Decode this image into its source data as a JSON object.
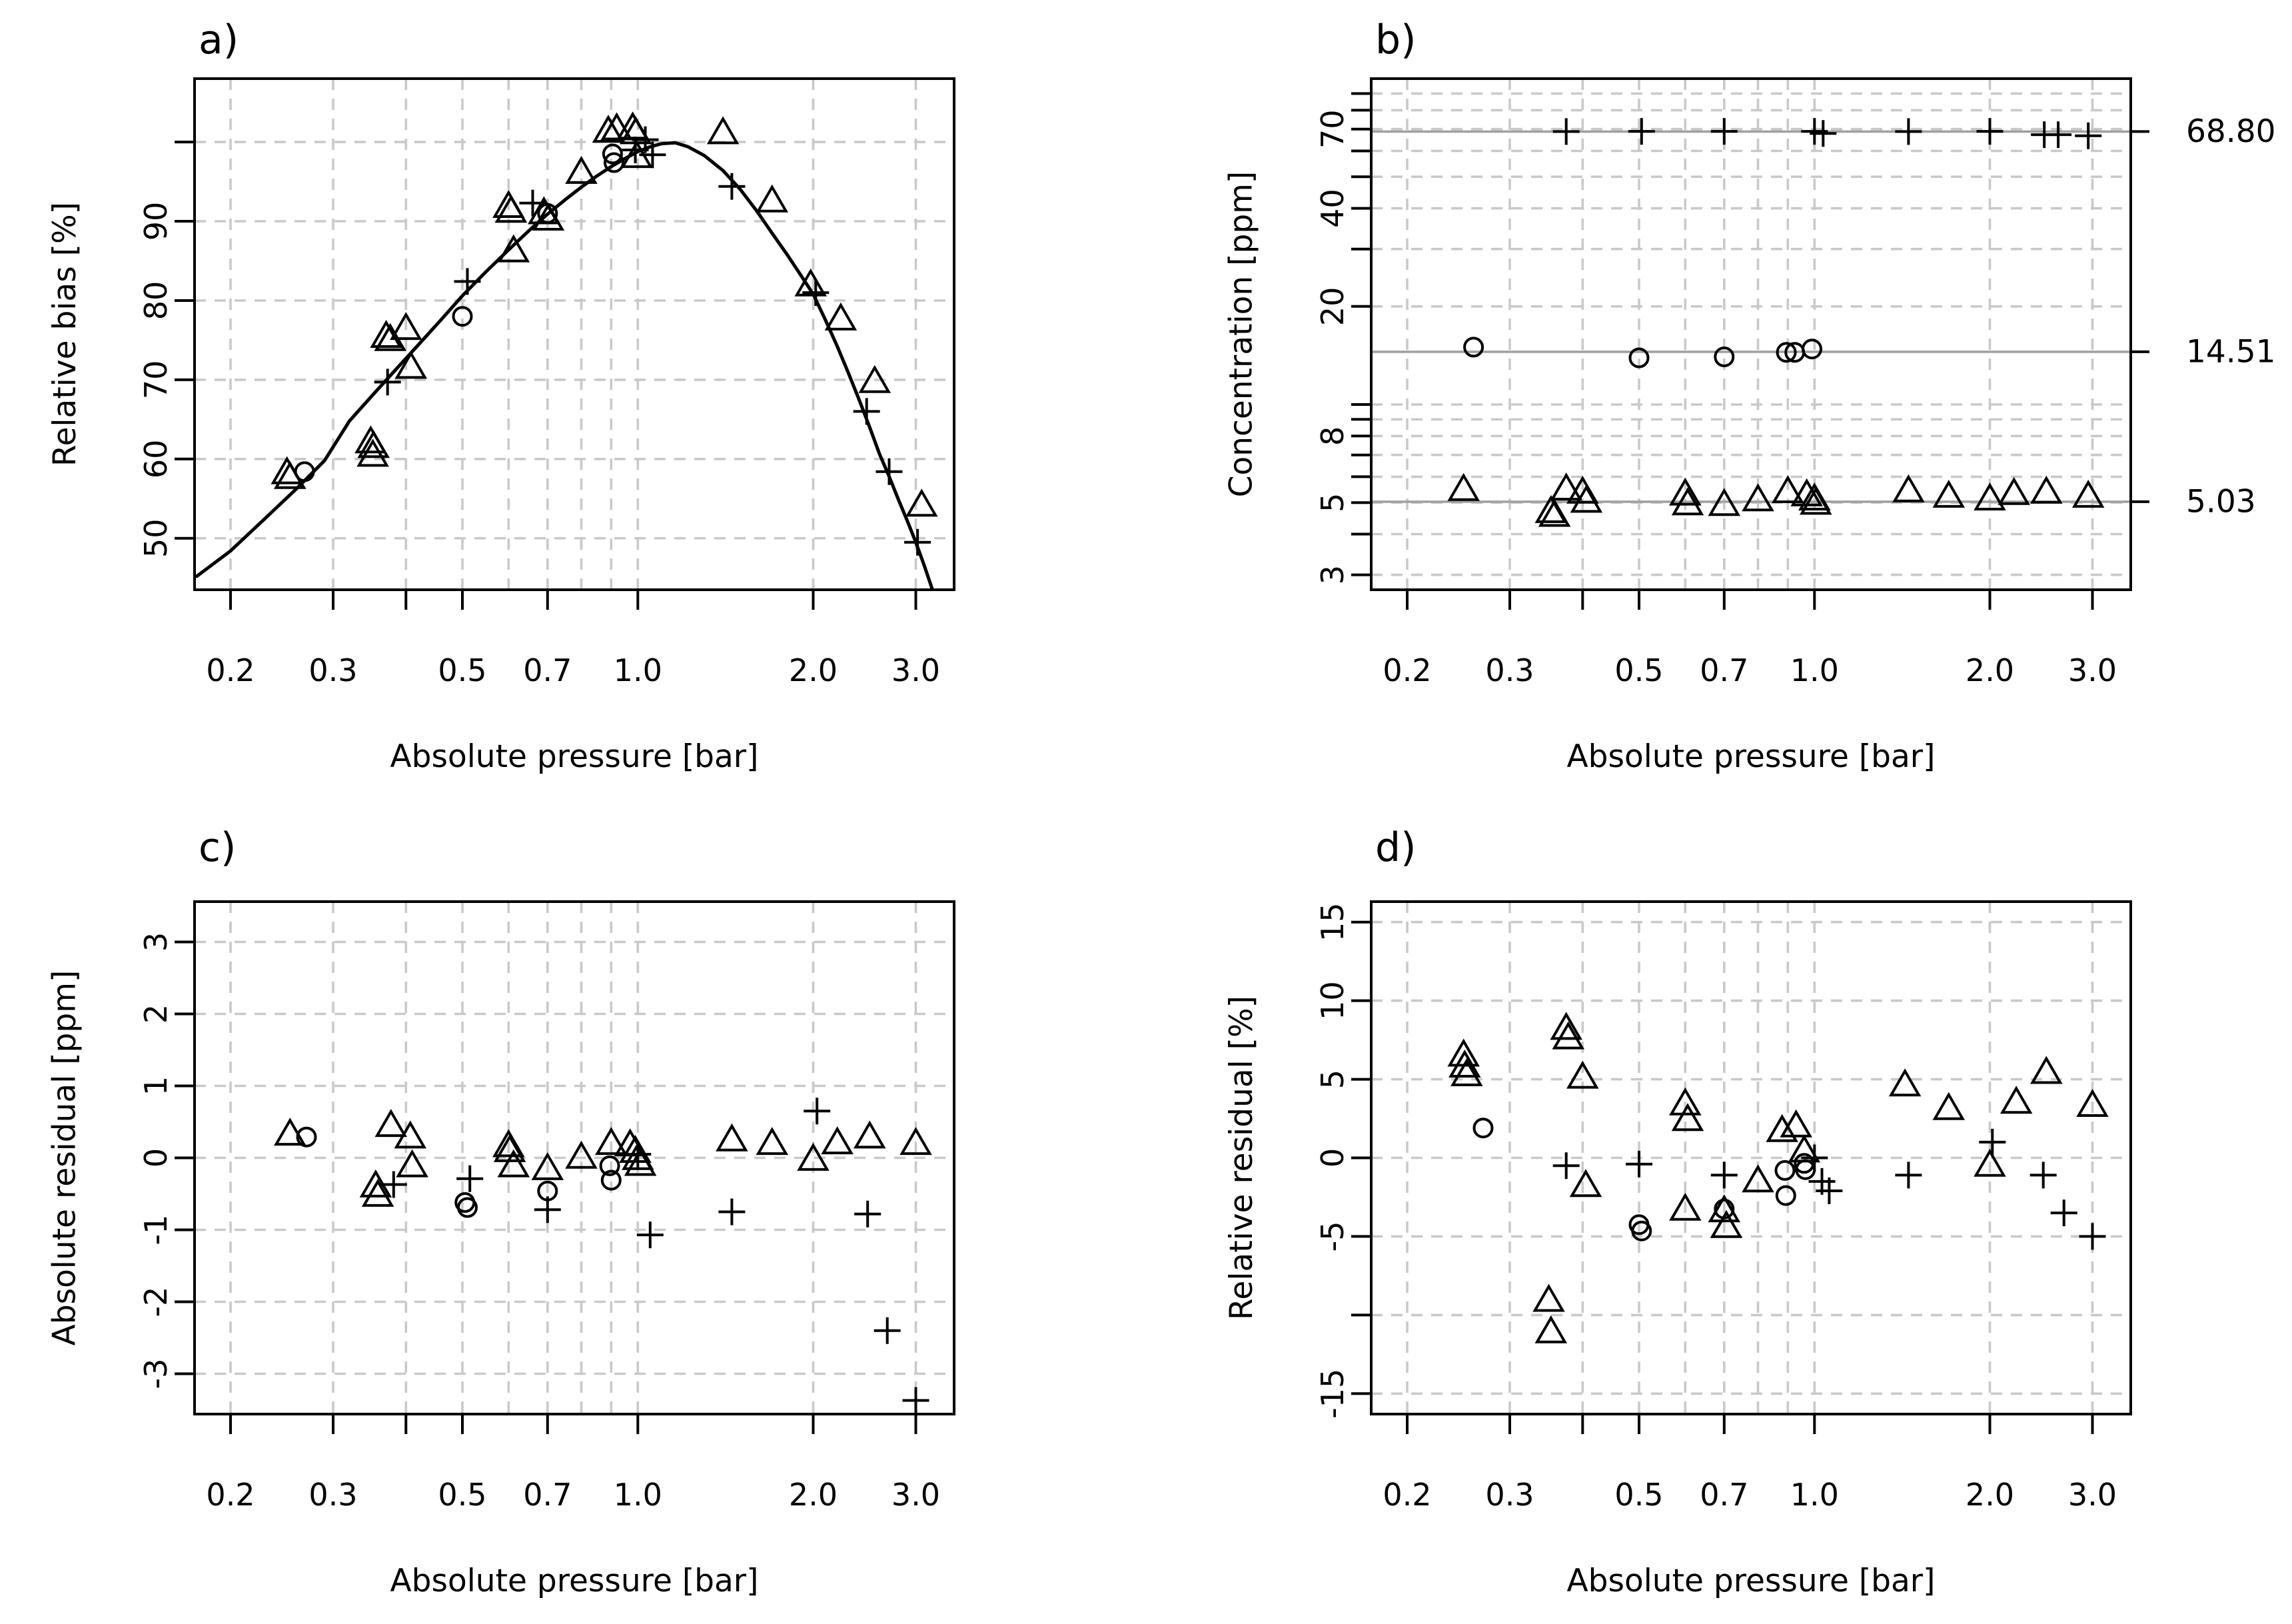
{
  "chart_data": {
    "type": "scatter",
    "figure_kind": "2x2-panel-R-style-diagnostic-plots",
    "xlabel": "Absolute pressure [bar]",
    "x_scale": "log",
    "x_range": [
      0.1735,
      3.49
    ],
    "x_ticks": {
      "values": [
        0.2,
        0.3,
        0.4,
        0.5,
        0.7,
        1.0,
        2.0,
        3.0
      ],
      "labels": [
        "0.2",
        "0.3",
        "",
        "0.5",
        "0.7",
        "1.0",
        "2.0",
        "3.0"
      ]
    },
    "x_grid": [
      0.2,
      0.3,
      0.4,
      0.5,
      0.6,
      0.7,
      0.8,
      0.9,
      1.0,
      2.0,
      3.0
    ],
    "colors": {
      "grid": "#c9c9c9",
      "ref_line": "#a1a1a1",
      "marker": "#000000",
      "curve": "#000000",
      "box": "#000000"
    },
    "panels": [
      {
        "id": "a",
        "title": "a)",
        "ylabel": "Relative bias [%]",
        "y_scale": "linear",
        "y_range": [
          43.5,
          108.0
        ],
        "y_ticks": {
          "values": [
            50,
            60,
            70,
            80,
            90,
            100
          ],
          "labels": [
            "50",
            "60",
            "70",
            "80",
            "90",
            ""
          ]
        },
        "y_grid": [
          50,
          60,
          70,
          80,
          90,
          100
        ],
        "curve": [
          [
            0.175,
            45.2
          ],
          [
            0.2,
            48.4
          ],
          [
            0.23,
            52.6
          ],
          [
            0.26,
            56.3
          ],
          [
            0.29,
            59.8
          ],
          [
            0.32,
            64.8
          ],
          [
            0.35,
            68.0
          ],
          [
            0.38,
            70.9
          ],
          [
            0.42,
            74.4
          ],
          [
            0.46,
            77.6
          ],
          [
            0.5,
            80.6
          ],
          [
            0.55,
            83.7
          ],
          [
            0.6,
            86.4
          ],
          [
            0.65,
            88.8
          ],
          [
            0.7,
            90.9
          ],
          [
            0.75,
            92.7
          ],
          [
            0.8,
            94.3
          ],
          [
            0.85,
            95.7
          ],
          [
            0.9,
            96.9
          ],
          [
            0.95,
            97.9
          ],
          [
            1.0,
            98.8
          ],
          [
            1.05,
            99.4
          ],
          [
            1.1,
            99.8
          ],
          [
            1.16,
            99.9
          ],
          [
            1.22,
            99.4
          ],
          [
            1.3,
            98.3
          ],
          [
            1.4,
            96.4
          ],
          [
            1.5,
            94.0
          ],
          [
            1.6,
            91.3
          ],
          [
            1.7,
            88.5
          ],
          [
            1.8,
            85.9
          ],
          [
            1.9,
            83.3
          ],
          [
            2.0,
            80.8
          ],
          [
            2.1,
            77.5
          ],
          [
            2.2,
            74.2
          ],
          [
            2.3,
            70.8
          ],
          [
            2.4,
            67.4
          ],
          [
            2.5,
            64.0
          ],
          [
            2.6,
            60.6
          ],
          [
            2.7,
            57.8
          ],
          [
            2.8,
            54.9
          ],
          [
            2.9,
            52.2
          ],
          [
            3.0,
            49.5
          ],
          [
            3.1,
            46.6
          ],
          [
            3.2,
            43.6
          ]
        ],
        "series": {
          "triangle": [
            [
              0.25,
              58.0
            ],
            [
              0.253,
              57.4
            ],
            [
              0.348,
              61.9
            ],
            [
              0.352,
              61.3
            ],
            [
              0.351,
              60.2
            ],
            [
              0.37,
              75.2
            ],
            [
              0.376,
              74.8
            ],
            [
              0.4,
              76.2
            ],
            [
              0.408,
              71.3
            ],
            [
              0.6,
              91.6
            ],
            [
              0.606,
              91.0
            ],
            [
              0.612,
              86.0
            ],
            [
              0.69,
              90.8
            ],
            [
              0.702,
              90.0
            ],
            [
              0.8,
              95.9
            ],
            [
              0.89,
              101.1
            ],
            [
              0.92,
              101.4
            ],
            [
              0.98,
              101.5
            ],
            [
              0.992,
              100.9
            ],
            [
              0.996,
              97.9
            ],
            [
              1.4,
              100.9
            ],
            [
              1.7,
              92.3
            ],
            [
              1.98,
              81.7
            ],
            [
              2.23,
              77.4
            ],
            [
              2.55,
              69.5
            ],
            [
              3.07,
              53.9
            ]
          ],
          "circle": [
            [
              0.268,
              58.4
            ],
            [
              0.5,
              78.0
            ],
            [
              0.7,
              91.0
            ],
            [
              0.905,
              98.5
            ],
            [
              0.91,
              97.4
            ]
          ],
          "plus": [
            [
              0.372,
              69.7
            ],
            [
              0.51,
              82.4
            ],
            [
              0.66,
              92.3
            ],
            [
              0.99,
              99.0
            ],
            [
              1.03,
              100.3
            ],
            [
              1.06,
              98.4
            ],
            [
              1.45,
              94.4
            ],
            [
              2.02,
              81.0
            ],
            [
              2.47,
              66.0
            ],
            [
              2.7,
              58.4
            ],
            [
              3.02,
              49.5
            ]
          ]
        }
      },
      {
        "id": "b",
        "title": "b)",
        "ylabel": "Concentration [ppm]",
        "y_scale": "log",
        "y_range": [
          2.7,
          100
        ],
        "y_ticks": {
          "values": [
            3,
            4,
            5,
            6,
            7,
            8,
            9,
            10,
            20,
            30,
            40,
            50,
            60,
            70,
            80,
            90
          ],
          "labels": [
            "3",
            "",
            "5",
            "",
            "",
            "8",
            "",
            "",
            "20",
            "",
            "40",
            "",
            "",
            "70",
            "",
            ""
          ]
        },
        "y_grid": [
          3,
          4,
          5,
          6,
          7,
          8,
          9,
          10,
          20,
          30,
          40,
          50,
          60,
          70,
          80,
          90
        ],
        "ref_lines": [
          {
            "value": 68.8,
            "label": "68.80"
          },
          {
            "value": 14.51,
            "label": "14.51"
          },
          {
            "value": 5.03,
            "label": "5.03"
          }
        ],
        "series": {
          "triangle": [
            [
              0.25,
              5.4
            ],
            [
              0.353,
              4.62
            ],
            [
              0.358,
              4.5
            ],
            [
              0.375,
              5.42
            ],
            [
              0.4,
              5.3
            ],
            [
              0.406,
              4.97
            ],
            [
              0.6,
              5.23
            ],
            [
              0.606,
              4.88
            ],
            [
              0.7,
              4.86
            ],
            [
              0.8,
              5.02
            ],
            [
              0.9,
              5.32
            ],
            [
              0.97,
              5.2
            ],
            [
              1.0,
              5.05
            ],
            [
              1.005,
              4.9
            ],
            [
              1.45,
              5.35
            ],
            [
              1.7,
              5.15
            ],
            [
              2.0,
              5.05
            ],
            [
              2.2,
              5.25
            ],
            [
              2.5,
              5.3
            ],
            [
              2.95,
              5.15
            ]
          ],
          "circle": [
            [
              0.26,
              15.0
            ],
            [
              0.5,
              13.9
            ],
            [
              0.7,
              14.0
            ],
            [
              0.895,
              14.45
            ],
            [
              0.925,
              14.45
            ],
            [
              0.99,
              14.8
            ]
          ],
          "plus": [
            [
              0.375,
              68.8
            ],
            [
              0.505,
              68.9
            ],
            [
              0.7,
              68.9
            ],
            [
              1.0,
              68.9
            ],
            [
              1.035,
              67.9
            ],
            [
              1.45,
              68.8
            ],
            [
              2.0,
              68.9
            ],
            [
              2.48,
              67.3
            ],
            [
              2.62,
              67.3
            ],
            [
              2.95,
              66.8
            ]
          ]
        }
      },
      {
        "id": "c",
        "title": "c)",
        "ylabel": "Absolute residual [ppm]",
        "y_scale": "linear",
        "y_range": [
          -3.56,
          3.56
        ],
        "y_ticks": {
          "values": [
            -3,
            -2,
            -1,
            0,
            1,
            2,
            3
          ],
          "labels": [
            "-3",
            "-2",
            "-1",
            "0",
            "1",
            "2",
            "3"
          ]
        },
        "y_grid": [
          -3,
          -2,
          -1,
          0,
          1,
          2,
          3
        ],
        "series": {
          "triangle": [
            [
              0.253,
              0.3
            ],
            [
              0.355,
              -0.42
            ],
            [
              0.358,
              -0.55
            ],
            [
              0.377,
              0.42
            ],
            [
              0.407,
              0.26
            ],
            [
              0.41,
              -0.14
            ],
            [
              0.6,
              0.14
            ],
            [
              0.603,
              0.07
            ],
            [
              0.612,
              -0.14
            ],
            [
              0.7,
              -0.18
            ],
            [
              0.8,
              -0.02
            ],
            [
              0.9,
              0.17
            ],
            [
              0.97,
              0.15
            ],
            [
              0.99,
              0.06
            ],
            [
              1.0,
              -0.04
            ],
            [
              1.01,
              -0.12
            ],
            [
              1.45,
              0.22
            ],
            [
              1.7,
              0.17
            ],
            [
              2.0,
              -0.05
            ],
            [
              2.2,
              0.18
            ],
            [
              2.5,
              0.26
            ],
            [
              3.0,
              0.17
            ]
          ],
          "circle": [
            [
              0.27,
              0.29
            ],
            [
              0.505,
              -0.62
            ],
            [
              0.51,
              -0.69
            ],
            [
              0.7,
              -0.46
            ],
            [
              0.895,
              -0.11
            ],
            [
              0.9,
              -0.31
            ]
          ],
          "plus": [
            [
              0.381,
              -0.37
            ],
            [
              0.515,
              -0.29
            ],
            [
              0.7,
              -0.72
            ],
            [
              1.0,
              0.05
            ],
            [
              1.05,
              -1.07
            ],
            [
              1.45,
              -0.75
            ],
            [
              2.03,
              0.65
            ],
            [
              2.48,
              -0.78
            ],
            [
              2.68,
              -2.4
            ],
            [
              3.0,
              -3.37
            ]
          ]
        }
      },
      {
        "id": "d",
        "title": "d)",
        "ylabel": "Relative residual [%]",
        "y_scale": "linear",
        "y_range": [
          -16.3,
          16.3
        ],
        "y_ticks": {
          "values": [
            -15,
            -10,
            -5,
            0,
            5,
            10,
            15
          ],
          "labels": [
            "-15",
            "",
            "-5",
            "0",
            "5",
            "10",
            "15"
          ]
        },
        "y_grid": [
          -15,
          -10,
          -5,
          0,
          5,
          10,
          15
        ],
        "series": {
          "triangle": [
            [
              0.25,
              6.4
            ],
            [
              0.251,
              5.7
            ],
            [
              0.253,
              5.15
            ],
            [
              0.35,
              -9.2
            ],
            [
              0.353,
              -11.2
            ],
            [
              0.375,
              8.1
            ],
            [
              0.378,
              7.5
            ],
            [
              0.4,
              5.0
            ],
            [
              0.405,
              -1.9
            ],
            [
              0.6,
              3.3
            ],
            [
              0.606,
              2.3
            ],
            [
              0.6,
              -3.4
            ],
            [
              0.7,
              -3.5
            ],
            [
              0.706,
              -4.5
            ],
            [
              0.8,
              -1.6
            ],
            [
              0.88,
              1.6
            ],
            [
              0.93,
              1.9
            ],
            [
              0.96,
              0.3
            ],
            [
              1.43,
              4.5
            ],
            [
              1.7,
              3.0
            ],
            [
              2.0,
              -0.6
            ],
            [
              2.22,
              3.4
            ],
            [
              2.5,
              5.3
            ],
            [
              3.0,
              3.2
            ]
          ],
          "circle": [
            [
              0.27,
              1.9
            ],
            [
              0.5,
              -4.25
            ],
            [
              0.505,
              -4.65
            ],
            [
              0.7,
              -3.25
            ],
            [
              0.89,
              -0.8
            ],
            [
              0.893,
              -2.4
            ],
            [
              0.96,
              -0.35
            ],
            [
              0.965,
              -0.75
            ]
          ],
          "plus": [
            [
              0.375,
              -0.5
            ],
            [
              0.5,
              -0.4
            ],
            [
              0.7,
              -1.1
            ],
            [
              1.0,
              0.0
            ],
            [
              1.03,
              -1.5
            ],
            [
              1.06,
              -2.1
            ],
            [
              1.45,
              -1.1
            ],
            [
              2.02,
              1.0
            ],
            [
              2.47,
              -1.1
            ],
            [
              2.68,
              -3.5
            ],
            [
              3.0,
              -5.0
            ]
          ]
        }
      }
    ]
  }
}
